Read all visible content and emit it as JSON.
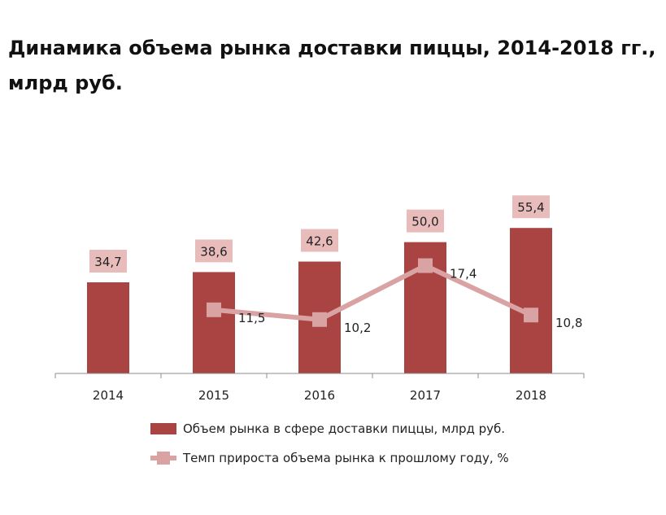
{
  "title": "Динамика объема рынка доставки пиццы, 2014-2018 гг., млрд руб.",
  "colors": {
    "bar": "#a94442",
    "bar_label_bg": "#e9bcbc",
    "line": "#d9a3a3",
    "marker": "#d9a3a3"
  },
  "chart_data": {
    "type": "bar",
    "categories": [
      "2014",
      "2015",
      "2016",
      "2017",
      "2018"
    ],
    "series": [
      {
        "name": "Объем рынка в сфере доставки пиццы, млрд руб.",
        "type": "bar",
        "values": [
          34.7,
          38.6,
          42.6,
          50.0,
          55.4
        ],
        "labels": [
          "34,7",
          "38,6",
          "42,6",
          "50,0",
          "55,4"
        ]
      },
      {
        "name": "Темп прироста объема рынка к прошлому году, %",
        "type": "line",
        "values": [
          null,
          11.5,
          10.2,
          17.4,
          10.8
        ],
        "labels": [
          "",
          "11,5",
          "10,2",
          "17,4",
          "10,8"
        ]
      }
    ],
    "legend_position": "bottom",
    "grid": false
  }
}
